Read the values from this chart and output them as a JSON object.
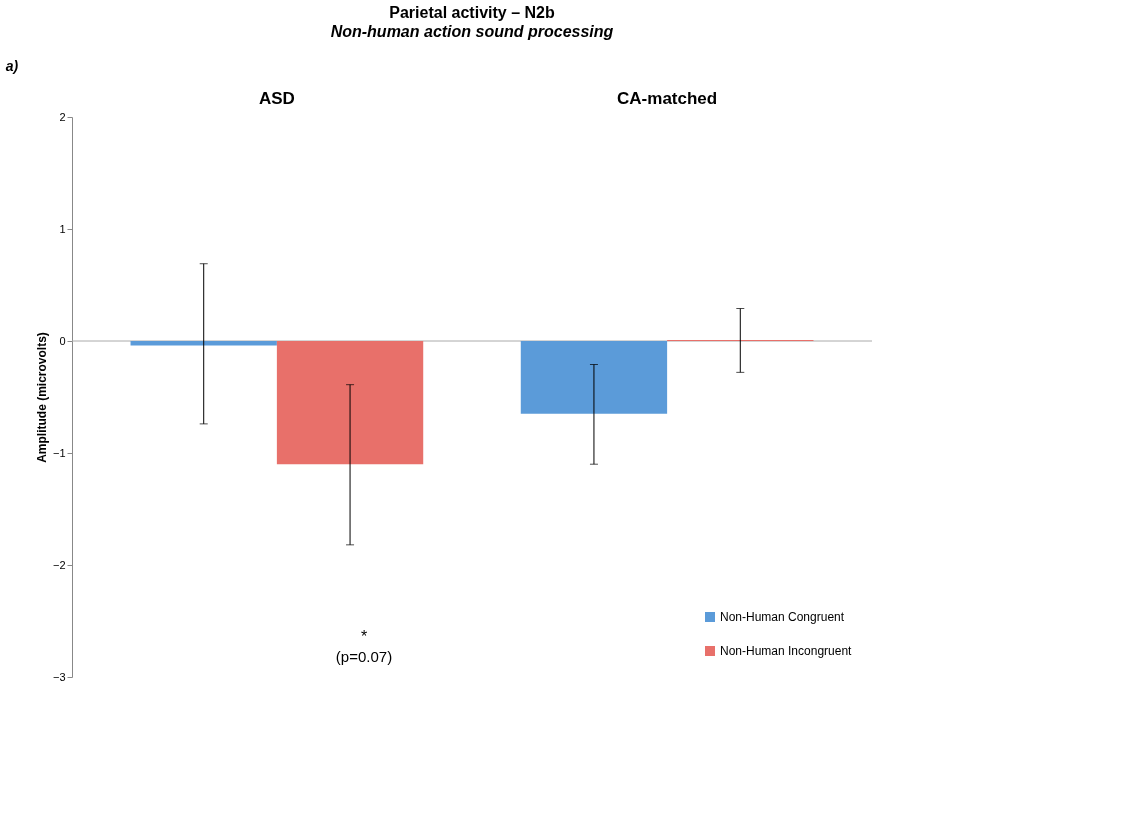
{
  "chart_data": {
    "type": "bar",
    "title": "Parietal activity – N2b",
    "subtitle": "Non-human action sound processing",
    "ylabel": "Amplitude (microvolts)",
    "categories": [
      "ASD",
      "CA-matched"
    ],
    "series": [
      {
        "name": "Non-Human Congruent",
        "color": "#5b9bd9",
        "values": [
          -0.04,
          -0.65
        ],
        "errors": [
          [
            -0.74,
            0.69
          ],
          [
            -1.1,
            -0.21
          ]
        ]
      },
      {
        "name": "Non-Human Incongruent",
        "color": "#e8706a",
        "values": [
          -1.1,
          0.01
        ],
        "errors": [
          [
            -1.82,
            -0.39
          ],
          [
            -0.28,
            0.29
          ]
        ]
      }
    ],
    "ref_lines": [
      {
        "axis": "y",
        "value": 0,
        "color": "#aaaaaa"
      }
    ],
    "ylim": [
      -3,
      2
    ],
    "yticks": [
      -3,
      -2,
      -1,
      0,
      1,
      2
    ],
    "grid": false,
    "legend": "bottom right",
    "annotations": [
      "a)",
      "*",
      "(p=0.07)"
    ]
  }
}
